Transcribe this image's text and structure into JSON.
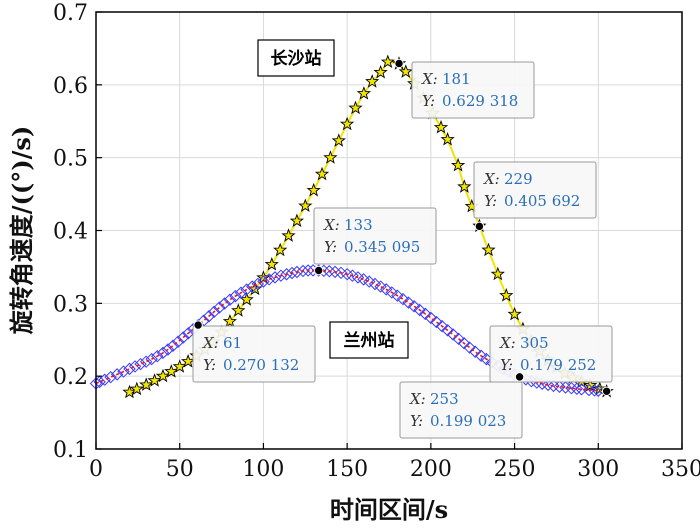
{
  "chart_data": {
    "type": "line",
    "xlabel": "时间区间/s",
    "ylabel": "旋转角速度/((°)/s)",
    "xlim": [
      0,
      350
    ],
    "ylim": [
      0.1,
      0.7
    ],
    "xticks": [
      "0",
      "50",
      "100",
      "150",
      "200",
      "250",
      "300",
      "350"
    ],
    "yticks": [
      "0.1",
      "0.2",
      "0.3",
      "0.4",
      "0.5",
      "0.6",
      "0.7"
    ],
    "grid": true,
    "series": [
      {
        "name": "长沙站",
        "color": "#f2e400",
        "marker": "star",
        "x": [
          20,
          30,
          40,
          50,
          60,
          70,
          80,
          90,
          100,
          110,
          120,
          130,
          140,
          150,
          160,
          170,
          181,
          210,
          220,
          229,
          240,
          250,
          260,
          270,
          280,
          290,
          305
        ],
        "y": [
          0.178,
          0.188,
          0.2,
          0.213,
          0.228,
          0.247,
          0.275,
          0.305,
          0.335,
          0.373,
          0.413,
          0.455,
          0.5,
          0.546,
          0.588,
          0.617,
          0.629,
          0.525,
          0.46,
          0.406,
          0.34,
          0.285,
          0.248,
          0.222,
          0.204,
          0.192,
          0.179
        ]
      },
      {
        "name": "兰州站",
        "color": "#3a3aff",
        "marker": "diamond",
        "x": [
          0,
          20,
          40,
          61,
          80,
          100,
          120,
          133,
          150,
          170,
          190,
          210,
          230,
          253,
          270,
          290,
          300
        ],
        "y": [
          0.19,
          0.21,
          0.232,
          0.27,
          0.305,
          0.33,
          0.343,
          0.345,
          0.34,
          0.323,
          0.296,
          0.263,
          0.228,
          0.199,
          0.188,
          0.182,
          0.18
        ]
      }
    ],
    "station_labels": [
      "长沙站",
      "兰州站"
    ],
    "datatips": [
      {
        "x_key": "X:",
        "y_key": "Y:",
        "x_val": "181",
        "y_val": "0.629 318",
        "x": 181,
        "y": 0.629318
      },
      {
        "x_key": "X:",
        "y_key": "Y:",
        "x_val": "229",
        "y_val": "0.405 692",
        "x": 229,
        "y": 0.405692
      },
      {
        "x_key": "X:",
        "y_key": "Y:",
        "x_val": "133",
        "y_val": "0.345 095",
        "x": 133,
        "y": 0.345095
      },
      {
        "x_key": "X:",
        "y_key": "Y:",
        "x_val": "61",
        "y_val": "0.270 132",
        "x": 61,
        "y": 0.270132
      },
      {
        "x_key": "X:",
        "y_key": "Y:",
        "x_val": "305",
        "y_val": "0.179 252",
        "x": 305,
        "y": 0.179252
      },
      {
        "x_key": "X:",
        "y_key": "Y:",
        "x_val": "253",
        "y_val": "0.199 023",
        "x": 253,
        "y": 0.199023
      }
    ]
  }
}
